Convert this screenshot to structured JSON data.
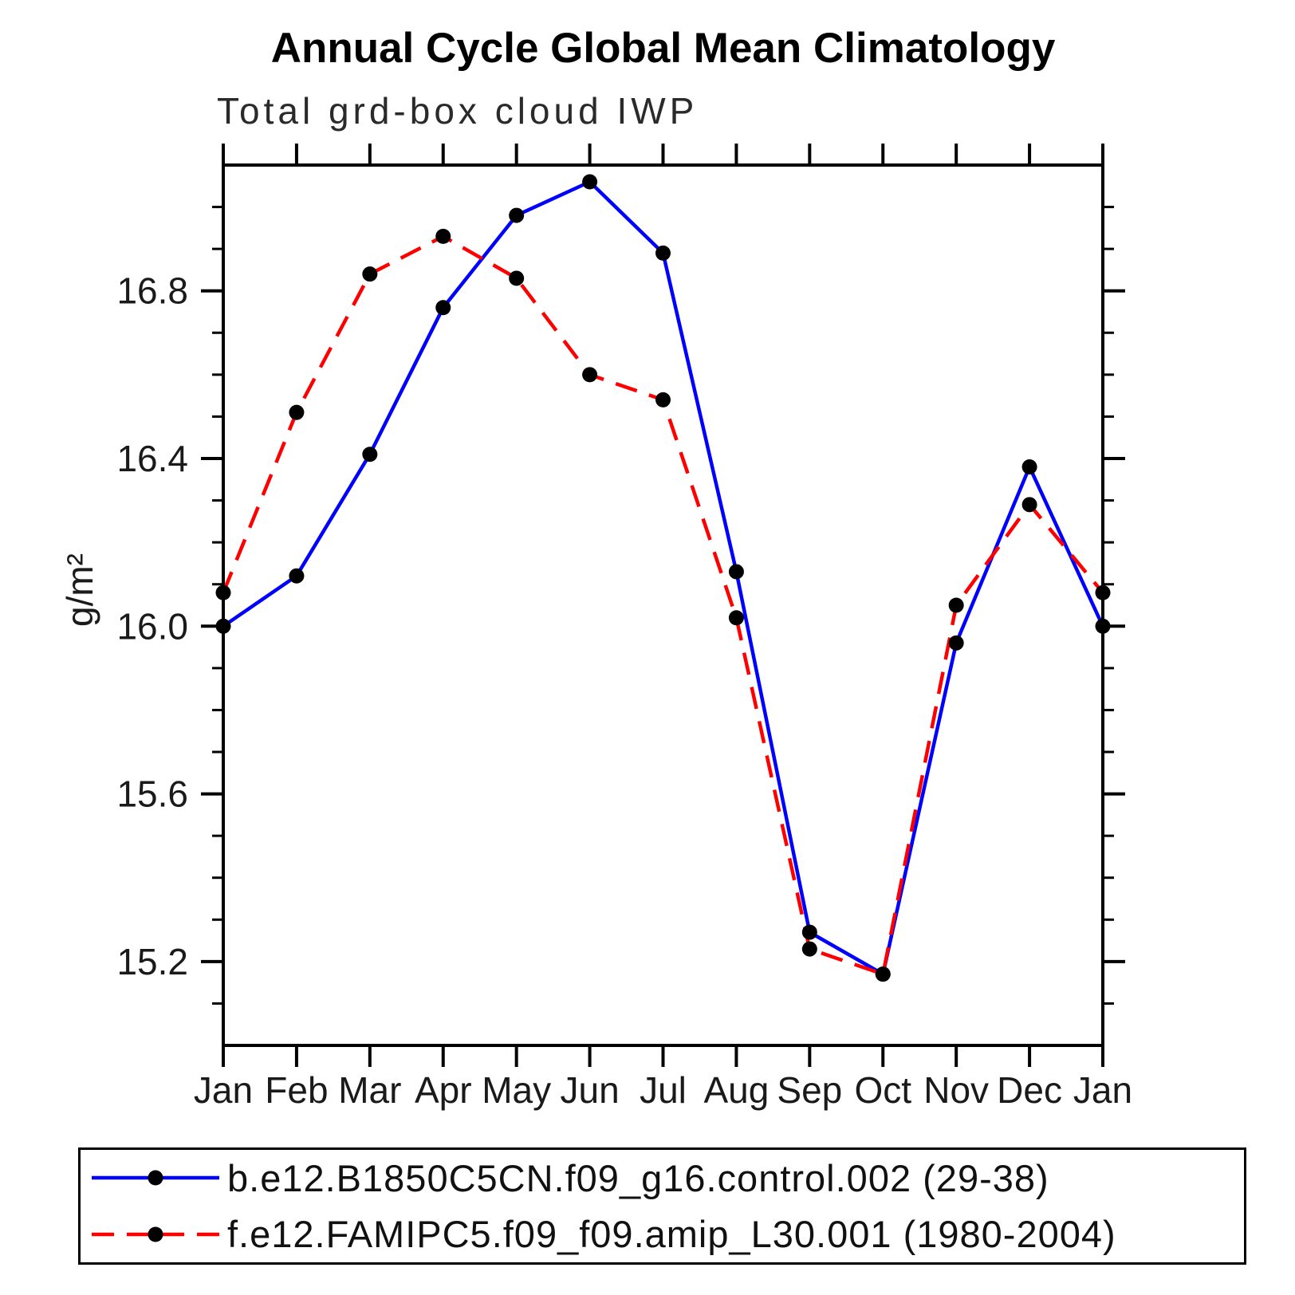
{
  "chart_data": {
    "type": "line",
    "title": "Annual Cycle Global Mean Climatology",
    "subtitle": "Total grd-box cloud IWP",
    "ylabel": "g/m²",
    "xlabel": "",
    "categories": [
      "Jan",
      "Feb",
      "Mar",
      "Apr",
      "May",
      "Jun",
      "Jul",
      "Aug",
      "Sep",
      "Oct",
      "Nov",
      "Dec",
      "Jan"
    ],
    "ylim": [
      15.0,
      17.1
    ],
    "yticks": [
      15.2,
      15.6,
      16.0,
      16.4,
      16.8
    ],
    "ytick_labels": [
      "15.2",
      "15.6",
      "16.0",
      "16.4",
      "16.8"
    ],
    "yminor_step": 0.1,
    "grid": false,
    "legend_position": "bottom",
    "axis_color": "#000000",
    "marker_color": "#000000",
    "series": [
      {
        "name": "b.e12.B1850C5CN.f09_g16.control.002 (29-38)",
        "color": "#0000ff",
        "line_style": "solid",
        "marker": "filled-circle",
        "values": [
          16.0,
          16.12,
          16.41,
          16.76,
          16.98,
          17.06,
          16.89,
          16.13,
          15.27,
          15.17,
          15.96,
          16.38,
          16.0
        ]
      },
      {
        "name": "f.e12.FAMIPC5.f09_f09.amip_L30.001 (1980-2004)",
        "color": "#ff0000",
        "line_style": "dashed",
        "marker": "filled-circle",
        "values": [
          16.08,
          16.51,
          16.84,
          16.93,
          16.83,
          16.6,
          16.54,
          16.02,
          15.23,
          15.17,
          16.05,
          16.29,
          16.08
        ]
      }
    ]
  }
}
